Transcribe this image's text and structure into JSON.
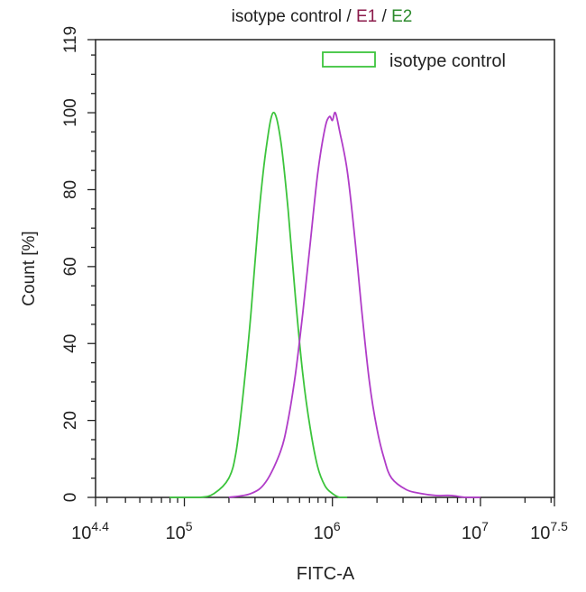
{
  "chart_data": {
    "type": "line",
    "title_parts": [
      {
        "text": "isotype control",
        "color": "#222222"
      },
      {
        "text": " / ",
        "color": "#222222"
      },
      {
        "text": "E1",
        "color": "#8b1a4a"
      },
      {
        "text": " / ",
        "color": "#222222"
      },
      {
        "text": "E2",
        "color": "#2e8b2e"
      }
    ],
    "xlabel": "FITC-A",
    "ylabel": "Count  [%]",
    "x_scale": "log10",
    "xlim_log10": [
      4.4,
      7.5
    ],
    "ylim": [
      0,
      119
    ],
    "x_ticks": [
      {
        "log10": 4.4,
        "base": "10",
        "exp": "4.4"
      },
      {
        "log10": 5,
        "base": "10",
        "exp": "5"
      },
      {
        "log10": 6,
        "base": "10",
        "exp": "6"
      },
      {
        "log10": 7,
        "base": "10",
        "exp": "7"
      },
      {
        "log10": 7.5,
        "base": "10",
        "exp": "7.5"
      }
    ],
    "y_ticks": [
      0,
      20,
      40,
      60,
      80,
      100,
      119
    ],
    "grid": false,
    "legend": {
      "placement": "top-right",
      "entries": [
        {
          "label": "isotype control",
          "color": "#3cc43c"
        }
      ]
    },
    "series": [
      {
        "name": "isotype control",
        "color": "#3cc43c",
        "x_log10": [
          4.9,
          5.1,
          5.2,
          5.3,
          5.35,
          5.4,
          5.45,
          5.5,
          5.55,
          5.6,
          5.65,
          5.7,
          5.75,
          5.8,
          5.85,
          5.9,
          5.95,
          6.0,
          6.05,
          6.1
        ],
        "y": [
          0,
          0,
          1,
          5,
          12,
          28,
          48,
          72,
          90,
          100,
          93,
          75,
          52,
          32,
          18,
          8,
          3,
          1,
          0,
          0
        ]
      },
      {
        "color": "#b03cc8",
        "x_log10": [
          5.3,
          5.45,
          5.55,
          5.65,
          5.7,
          5.75,
          5.8,
          5.85,
          5.9,
          5.95,
          5.98,
          6.0,
          6.02,
          6.05,
          6.1,
          6.15,
          6.2,
          6.25,
          6.3,
          6.35,
          6.4,
          6.5,
          6.6,
          6.7,
          6.8,
          6.9,
          7.0
        ],
        "y": [
          0,
          1,
          4,
          12,
          20,
          32,
          48,
          66,
          84,
          96,
          99,
          98,
          100,
          95,
          85,
          68,
          48,
          30,
          18,
          10,
          5,
          2,
          1,
          0.5,
          0.5,
          0,
          0
        ]
      }
    ]
  }
}
